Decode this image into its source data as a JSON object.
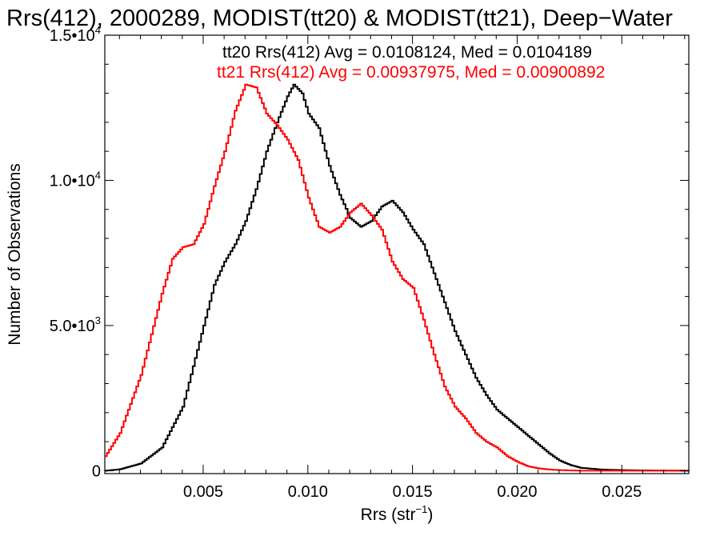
{
  "chart_data": {
    "type": "line",
    "step": true,
    "title": "Rrs(412), 2000289, MODIST(tt20) & MODIST(tt21), Deep−Water",
    "xlabel": "Rrs (str",
    "xlabel_sup": "−1",
    "xlabel_close": ")",
    "ylabel": "Number of Observations",
    "xlim": [
      0.0003,
      0.0282
    ],
    "ylim": [
      -100,
      15000
    ],
    "grid": false,
    "x_ticks": [
      {
        "value": 0.005,
        "label": "0.005"
      },
      {
        "value": 0.01,
        "label": "0.010"
      },
      {
        "value": 0.015,
        "label": "0.015"
      },
      {
        "value": 0.02,
        "label": "0.020"
      },
      {
        "value": 0.025,
        "label": "0.025"
      }
    ],
    "y_ticks": [
      {
        "value": 0,
        "mant": "0",
        "exp": ""
      },
      {
        "value": 5000,
        "mant": "5.0•10",
        "exp": "3"
      },
      {
        "value": 10000,
        "mant": "1.0•10",
        "exp": "4"
      },
      {
        "value": 15000,
        "mant": "1.5•10",
        "exp": "4"
      }
    ],
    "annotations": [
      "tt20 Rrs(412) Avg = 0.0108124, Med = 0.0104189",
      "tt21 Rrs(412) Avg = 0.00937975, Med = 0.00900892"
    ],
    "series": [
      {
        "color": "#000000",
        "x": [
          0.0003,
          0.001,
          0.002,
          0.003,
          0.004,
          0.005,
          0.0055,
          0.006,
          0.0065,
          0.007,
          0.0075,
          0.008,
          0.0085,
          0.009,
          0.0093,
          0.0097,
          0.01,
          0.0105,
          0.011,
          0.0115,
          0.012,
          0.0125,
          0.013,
          0.0135,
          0.014,
          0.0145,
          0.015,
          0.0155,
          0.016,
          0.0165,
          0.017,
          0.0175,
          0.018,
          0.0185,
          0.019,
          0.0195,
          0.02,
          0.0205,
          0.021,
          0.0215,
          0.022,
          0.0225,
          0.023,
          0.024,
          0.025,
          0.026,
          0.0282
        ],
        "y": [
          0,
          50,
          250,
          800,
          2200,
          5000,
          6400,
          7200,
          7800,
          8600,
          9700,
          11000,
          12000,
          12900,
          13300,
          13000,
          12300,
          11800,
          10500,
          9500,
          8700,
          8400,
          8600,
          9100,
          9300,
          8900,
          8300,
          7800,
          6800,
          5800,
          4800,
          4000,
          3200,
          2600,
          2100,
          1800,
          1500,
          1200,
          900,
          600,
          350,
          200,
          100,
          40,
          20,
          10,
          0
        ]
      },
      {
        "color": "#ff0000",
        "x": [
          0.0003,
          0.001,
          0.002,
          0.003,
          0.0035,
          0.004,
          0.0045,
          0.005,
          0.0055,
          0.006,
          0.0065,
          0.007,
          0.0075,
          0.008,
          0.0085,
          0.009,
          0.0095,
          0.01,
          0.0105,
          0.011,
          0.0115,
          0.012,
          0.0125,
          0.013,
          0.0135,
          0.014,
          0.0145,
          0.015,
          0.0155,
          0.016,
          0.0165,
          0.017,
          0.0175,
          0.018,
          0.0185,
          0.019,
          0.0195,
          0.02,
          0.0205,
          0.021,
          0.0215,
          0.022,
          0.023,
          0.025,
          0.0282
        ],
        "y": [
          500,
          1300,
          3300,
          6100,
          7300,
          7700,
          7800,
          8500,
          9800,
          11000,
          12400,
          13300,
          13200,
          12300,
          11900,
          11400,
          10700,
          9400,
          8400,
          8200,
          8400,
          8900,
          9200,
          8800,
          8300,
          7200,
          6600,
          6300,
          5200,
          4000,
          2900,
          2200,
          1800,
          1300,
          1000,
          800,
          500,
          300,
          150,
          80,
          40,
          20,
          0,
          0,
          0
        ]
      }
    ]
  }
}
